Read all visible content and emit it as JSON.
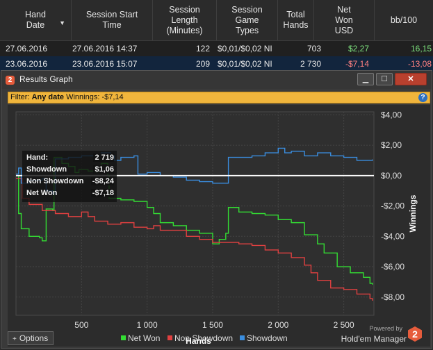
{
  "table": {
    "headers": [
      {
        "label": "Hand\nDate"
      },
      {
        "label": "Session Start\nTime"
      },
      {
        "label": "Session\nLength\n(Minutes)"
      },
      {
        "label": "Session\nGame\nTypes"
      },
      {
        "label": "Total\nHands"
      },
      {
        "label": "Net\nWon\nUSD"
      },
      {
        "label": "bb/100"
      }
    ],
    "rows": [
      {
        "date": "27.06.2016",
        "start": "27.06.2016 14:37",
        "length": "122",
        "game": "$0,01/$0,02 NI",
        "hands": "703",
        "net": "$2,27",
        "bb": "16,15"
      },
      {
        "date": "23.06.2016",
        "start": "23.06.2016 15:07",
        "length": "209",
        "game": "$0,01/$0,02 NI",
        "hands": "2 730",
        "net": "-$7,14",
        "bb": "-13,08"
      }
    ]
  },
  "window": {
    "title": "Results Graph",
    "controls": {
      "minimize": "▁",
      "maximize": "☐",
      "close": "✕"
    },
    "filter": {
      "prefix": "Filter:",
      "date": "Any date",
      "winnings": "Winnings: -$7,14"
    },
    "help": "?",
    "options_label": "Options",
    "options_icon": "+",
    "powered_by": "Powered by",
    "brand": "Hold'em Manager",
    "brand_mark": "2",
    "app_icon": "2"
  },
  "tooltip": {
    "rows": [
      {
        "label": "Hand:",
        "value": "2 719"
      },
      {
        "label": "Showdown",
        "value": "$1,06"
      },
      {
        "label": "Non Showdown",
        "value": "-$8,24"
      },
      {
        "label": "Net Won",
        "value": "-$7,18"
      }
    ]
  },
  "chart_data": {
    "type": "line",
    "xlabel": "Hands",
    "ylabel": "Winnings",
    "xlim": [
      0,
      2730
    ],
    "ylim": [
      -9.2,
      4.2
    ],
    "x_ticks": [
      {
        "v": 500,
        "label": "500"
      },
      {
        "v": 1000,
        "label": "1 000"
      },
      {
        "v": 1500,
        "label": "1 500"
      },
      {
        "v": 2000,
        "label": "2 000"
      },
      {
        "v": 2500,
        "label": "2 500"
      }
    ],
    "y_ticks": [
      {
        "v": 4,
        "label": "$4,00"
      },
      {
        "v": 2,
        "label": "$2,00"
      },
      {
        "v": 0,
        "label": "$0,00"
      },
      {
        "v": -2,
        "label": "-$2,00"
      },
      {
        "v": -4,
        "label": "-$4,00"
      },
      {
        "v": -6,
        "label": "-$6,00"
      },
      {
        "v": -8,
        "label": "-$8,00"
      }
    ],
    "series": [
      {
        "name": "Net Won",
        "color": "#33dd33",
        "points": [
          [
            0,
            0
          ],
          [
            20,
            -2.5
          ],
          [
            40,
            -3.5
          ],
          [
            100,
            -4.0
          ],
          [
            180,
            -4.1
          ],
          [
            200,
            -4.3
          ],
          [
            230,
            -2.2
          ],
          [
            280,
            -2.3
          ],
          [
            290,
            1.2
          ],
          [
            350,
            0.8
          ],
          [
            400,
            0.6
          ],
          [
            450,
            0.2
          ],
          [
            480,
            0.4
          ],
          [
            550,
            0.3
          ],
          [
            600,
            0.2
          ],
          [
            630,
            0.3
          ],
          [
            650,
            0.8
          ],
          [
            700,
            0.0
          ],
          [
            710,
            -1.5
          ],
          [
            800,
            -1.6
          ],
          [
            900,
            -1.7
          ],
          [
            1000,
            -2.1
          ],
          [
            1050,
            -2.5
          ],
          [
            1100,
            -3.1
          ],
          [
            1200,
            -3.3
          ],
          [
            1300,
            -3.6
          ],
          [
            1400,
            -3.8
          ],
          [
            1500,
            -4.5
          ],
          [
            1550,
            -4.2
          ],
          [
            1600,
            -3.8
          ],
          [
            1620,
            -2.1
          ],
          [
            1700,
            -2.4
          ],
          [
            1800,
            -2.5
          ],
          [
            1900,
            -2.6
          ],
          [
            2000,
            -2.9
          ],
          [
            2100,
            -3.1
          ],
          [
            2200,
            -3.9
          ],
          [
            2300,
            -4.5
          ],
          [
            2350,
            -5.1
          ],
          [
            2450,
            -6.0
          ],
          [
            2550,
            -6.4
          ],
          [
            2650,
            -6.7
          ],
          [
            2700,
            -7.1
          ],
          [
            2719,
            -7.18
          ]
        ]
      },
      {
        "name": "Non Showdown",
        "color": "#e04040",
        "points": [
          [
            0,
            -0.2
          ],
          [
            50,
            -1.5
          ],
          [
            100,
            -1.9
          ],
          [
            200,
            -2.3
          ],
          [
            300,
            -2.5
          ],
          [
            400,
            -2.7
          ],
          [
            500,
            -2.4
          ],
          [
            550,
            -2.7
          ],
          [
            600,
            -3.0
          ],
          [
            700,
            -3.2
          ],
          [
            800,
            -3.1
          ],
          [
            900,
            -3.4
          ],
          [
            1000,
            -3.5
          ],
          [
            1050,
            -3.3
          ],
          [
            1100,
            -3.6
          ],
          [
            1200,
            -3.6
          ],
          [
            1300,
            -4.0
          ],
          [
            1400,
            -4.2
          ],
          [
            1500,
            -4.4
          ],
          [
            1600,
            -4.4
          ],
          [
            1700,
            -4.5
          ],
          [
            1800,
            -4.6
          ],
          [
            1900,
            -4.9
          ],
          [
            2000,
            -5.1
          ],
          [
            2100,
            -5.4
          ],
          [
            2200,
            -5.9
          ],
          [
            2250,
            -6.4
          ],
          [
            2300,
            -6.9
          ],
          [
            2400,
            -7.4
          ],
          [
            2500,
            -7.5
          ],
          [
            2600,
            -7.8
          ],
          [
            2700,
            -8.1
          ],
          [
            2719,
            -8.24
          ]
        ]
      },
      {
        "name": "Showdown",
        "color": "#3a8ee0",
        "points": [
          [
            0,
            0.1
          ],
          [
            20,
            0.5
          ],
          [
            40,
            -0.5
          ],
          [
            100,
            -0.3
          ],
          [
            200,
            -0.2
          ],
          [
            230,
            -1.0
          ],
          [
            280,
            -1.2
          ],
          [
            300,
            1.1
          ],
          [
            400,
            1.2
          ],
          [
            500,
            1.3
          ],
          [
            600,
            1.3
          ],
          [
            650,
            1.5
          ],
          [
            700,
            1.5
          ],
          [
            720,
            1.3
          ],
          [
            750,
            1.0
          ],
          [
            800,
            1.2
          ],
          [
            900,
            1.3
          ],
          [
            930,
            0.1
          ],
          [
            1000,
            0.2
          ],
          [
            1100,
            0.0
          ],
          [
            1200,
            -0.1
          ],
          [
            1300,
            -0.3
          ],
          [
            1400,
            -0.4
          ],
          [
            1500,
            -0.5
          ],
          [
            1600,
            -0.5
          ],
          [
            1620,
            1.2
          ],
          [
            1700,
            1.2
          ],
          [
            1800,
            1.3
          ],
          [
            1900,
            1.5
          ],
          [
            2000,
            1.8
          ],
          [
            2050,
            1.5
          ],
          [
            2100,
            1.6
          ],
          [
            2200,
            1.3
          ],
          [
            2300,
            1.5
          ],
          [
            2400,
            1.3
          ],
          [
            2500,
            1.2
          ],
          [
            2600,
            1.0
          ],
          [
            2719,
            1.06
          ]
        ]
      }
    ]
  }
}
